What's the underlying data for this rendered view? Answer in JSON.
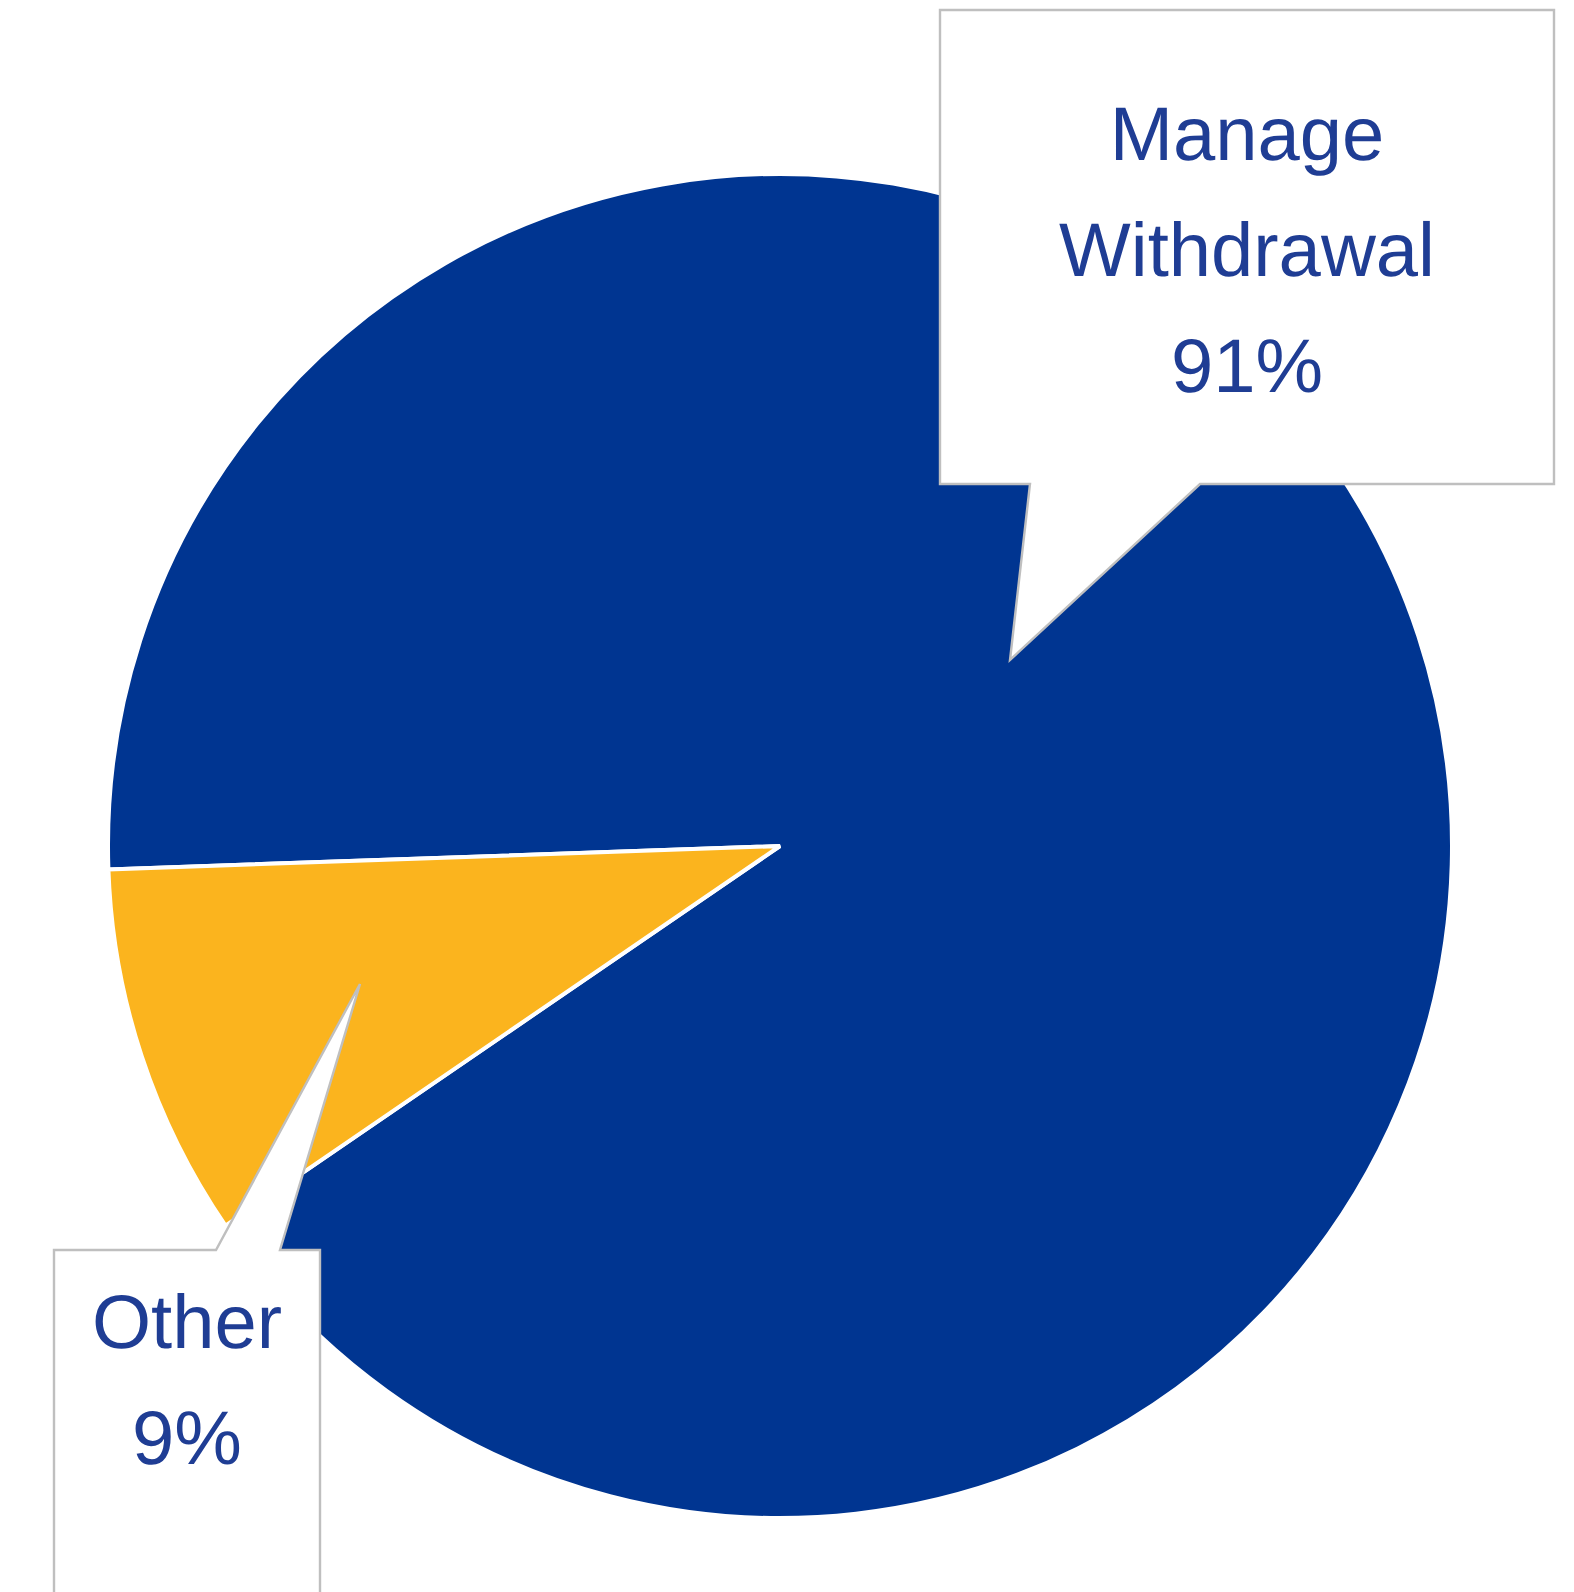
{
  "chart_data": {
    "type": "pie",
    "categories": [
      "Manage Withdrawal",
      "Other"
    ],
    "values": [
      91,
      9
    ],
    "colors": [
      "#003591",
      "#fbb41e"
    ],
    "value_labels": [
      "91%",
      "9%"
    ]
  }
}
